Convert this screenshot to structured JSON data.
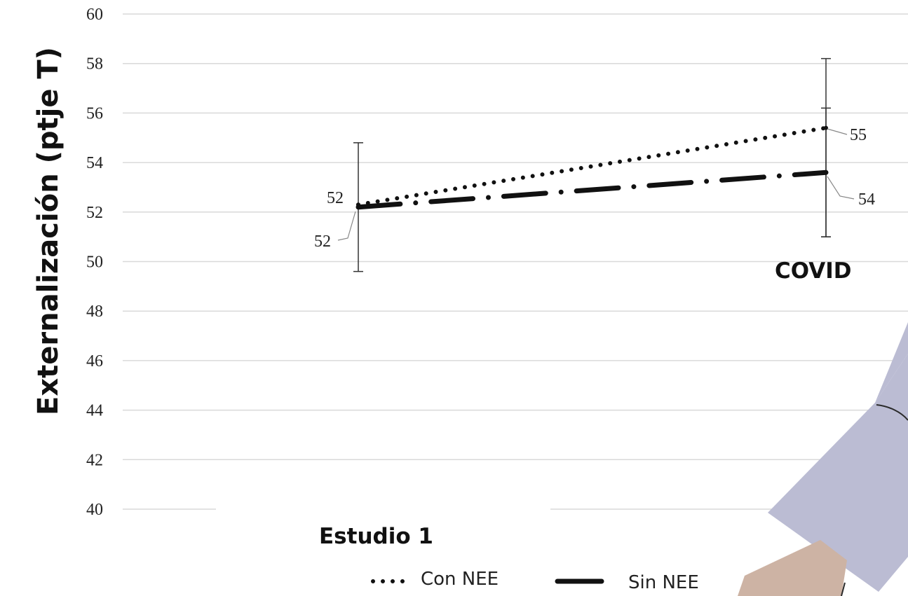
{
  "chart_data": {
    "type": "line",
    "ylabel": "Externalización (ptje T)",
    "categories": [
      "Estudio 1",
      "COVID"
    ],
    "ylim": [
      40,
      60
    ],
    "ytick_step": 2,
    "y_ticks": [
      "40",
      "42",
      "44",
      "46",
      "48",
      "50",
      "52",
      "54",
      "56",
      "58",
      "60"
    ],
    "grid": true,
    "legend_position": "bottom",
    "series": [
      {
        "name": "Con NEE",
        "values": [
          52.3,
          55.4
        ],
        "data_labels": [
          "52",
          "55"
        ],
        "style": "dotted",
        "error_low": [
          49.6,
          51.0
        ],
        "error_high": [
          54.8,
          58.2
        ]
      },
      {
        "name": "Sin NEE",
        "values": [
          52.2,
          53.6
        ],
        "data_labels": [
          "52",
          "54"
        ],
        "style": "dash-dot",
        "error_low": [
          49.6,
          51.0
        ],
        "error_high": [
          54.8,
          56.2
        ]
      }
    ],
    "colors": {
      "line": "#111111",
      "grid": "#d9d9d9",
      "decoration_sleeve": "#bbbcd3",
      "decoration_hand": "#cdb3a4"
    }
  }
}
